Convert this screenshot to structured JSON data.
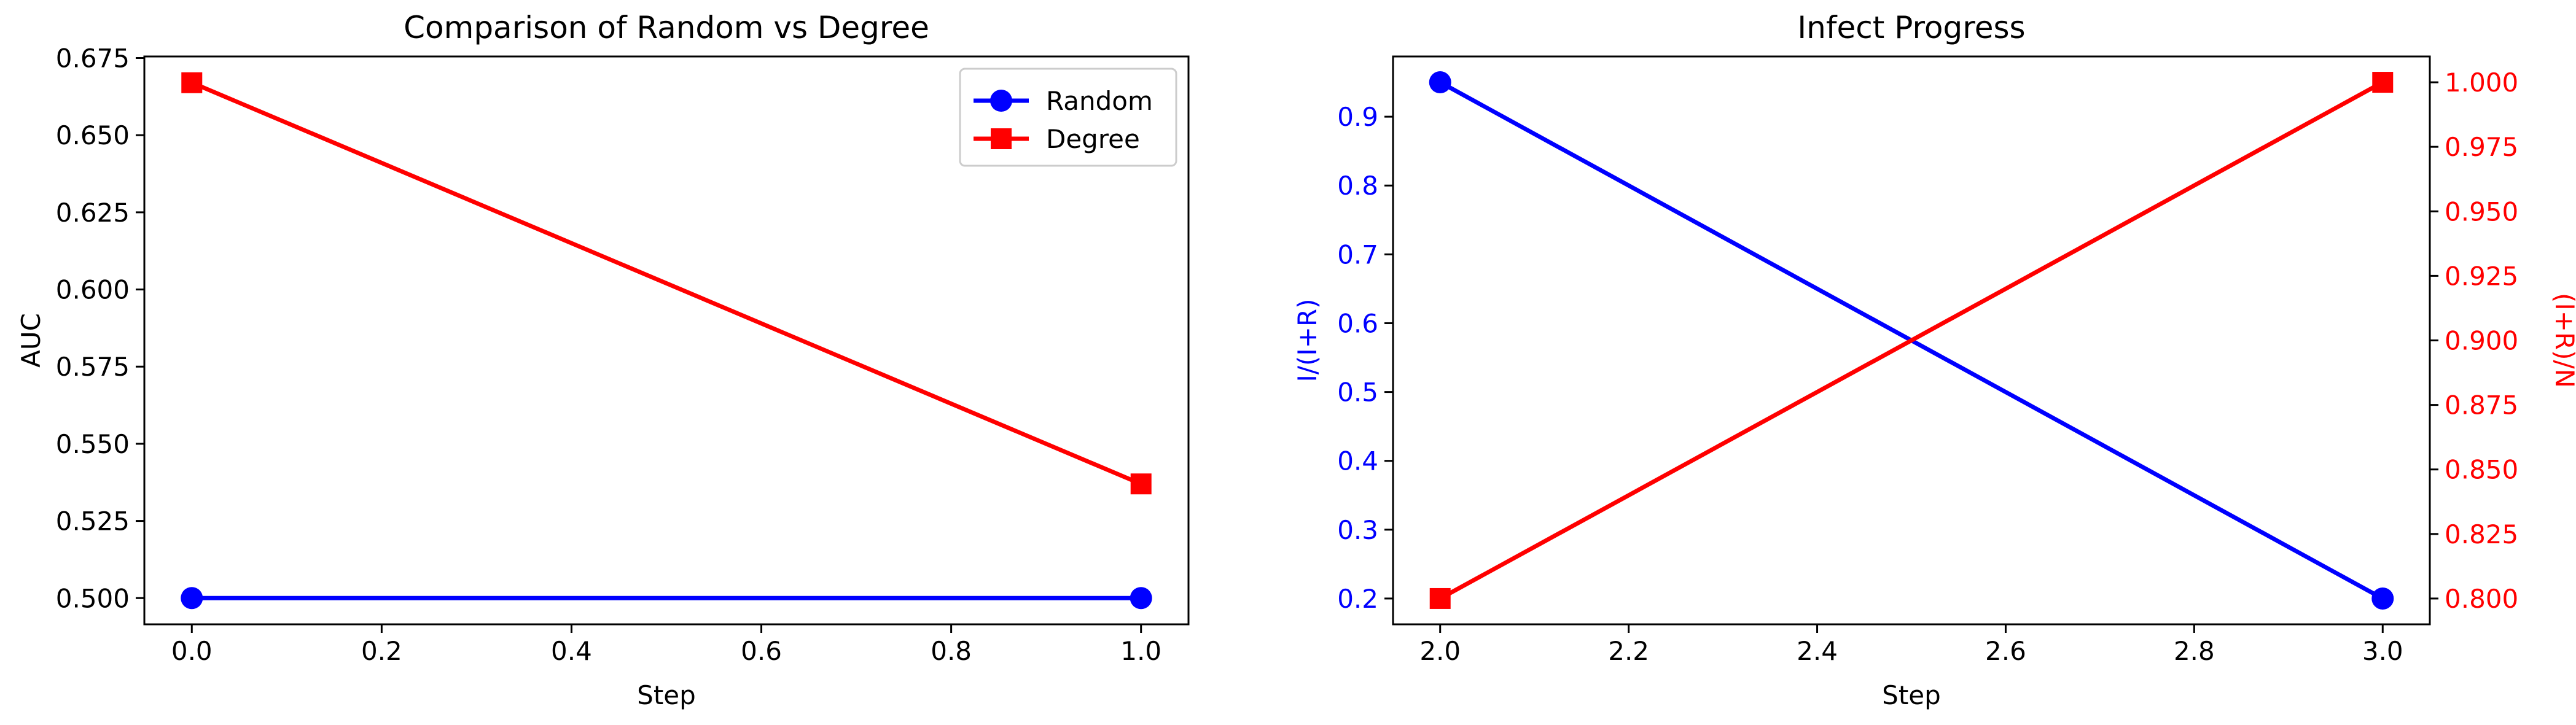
{
  "chart_data": [
    {
      "type": "line",
      "title": "Comparison of Random vs Degree",
      "xlabel": "Step",
      "ylabel": "AUC",
      "xlim": [
        -0.05,
        1.05
      ],
      "ylim": [
        0.4915,
        0.6755
      ],
      "xticks": [
        0.0,
        0.2,
        0.4,
        0.6,
        0.8,
        1.0
      ],
      "xtick_labels": [
        "0.0",
        "0.2",
        "0.4",
        "0.6",
        "0.8",
        "1.0"
      ],
      "yticks": [
        0.5,
        0.525,
        0.55,
        0.575,
        0.6,
        0.625,
        0.65,
        0.675
      ],
      "ytick_labels": [
        "0.500",
        "0.525",
        "0.550",
        "0.575",
        "0.600",
        "0.625",
        "0.650",
        "0.675"
      ],
      "grid": false,
      "legend_position": "top-right",
      "series": [
        {
          "name": "Random",
          "color": "#0000ff",
          "marker": "circle",
          "x": [
            0.0,
            1.0
          ],
          "y": [
            0.5,
            0.5
          ]
        },
        {
          "name": "Degree",
          "color": "#ff0000",
          "marker": "square",
          "x": [
            0.0,
            1.0
          ],
          "y": [
            0.667,
            0.537
          ]
        }
      ]
    },
    {
      "type": "line",
      "title": "Infect Progress",
      "xlabel": "Step",
      "ylabel": "I/(I+R)",
      "ylabel_color": "#0000ff",
      "y2label": "(I+R)/N",
      "y2label_color": "#ff0000",
      "xlim": [
        1.95,
        3.05
      ],
      "ylim": [
        0.1625,
        0.9875
      ],
      "y2lim": [
        0.79,
        1.01
      ],
      "xticks": [
        2.0,
        2.2,
        2.4,
        2.6,
        2.8,
        3.0
      ],
      "xtick_labels": [
        "2.0",
        "2.2",
        "2.4",
        "2.6",
        "2.8",
        "3.0"
      ],
      "yticks": [
        0.2,
        0.3,
        0.4,
        0.5,
        0.6,
        0.7,
        0.8,
        0.9
      ],
      "ytick_labels": [
        "0.2",
        "0.3",
        "0.4",
        "0.5",
        "0.6",
        "0.7",
        "0.8",
        "0.9"
      ],
      "y2ticks": [
        0.8,
        0.825,
        0.85,
        0.875,
        0.9,
        0.925,
        0.95,
        0.975,
        1.0
      ],
      "y2tick_labels": [
        "0.800",
        "0.825",
        "0.850",
        "0.875",
        "0.900",
        "0.925",
        "0.950",
        "0.975",
        "1.000"
      ],
      "grid": false,
      "series": [
        {
          "color": "#0000ff",
          "marker": "circle",
          "axis": "left",
          "x": [
            2.0,
            3.0
          ],
          "y": [
            0.95,
            0.2
          ]
        },
        {
          "color": "#ff0000",
          "marker": "square",
          "axis": "right",
          "x": [
            2.0,
            3.0
          ],
          "y": [
            0.8,
            1.0
          ]
        }
      ]
    }
  ]
}
